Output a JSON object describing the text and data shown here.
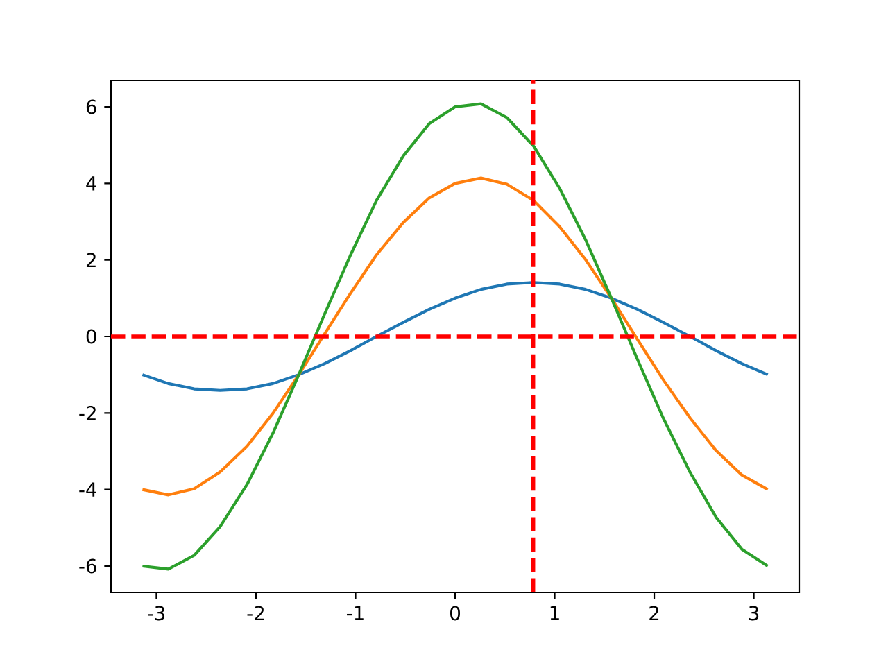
{
  "chart_data": {
    "type": "line",
    "x": [
      -3.14,
      -2.88,
      -2.62,
      -2.36,
      -2.09,
      -1.83,
      -1.57,
      -1.31,
      -1.05,
      -0.79,
      -0.52,
      -0.26,
      0,
      0.26,
      0.52,
      0.79,
      1.05,
      1.31,
      1.57,
      1.83,
      2.09,
      2.36,
      2.62,
      2.88,
      3.14
    ],
    "series": [
      {
        "color": "#1f77b4",
        "values": [
          -1,
          -1.23,
          -1.37,
          -1.41,
          -1.37,
          -1.23,
          -1,
          -0.71,
          -0.37,
          0,
          0.37,
          0.71,
          1,
          1.23,
          1.37,
          1.41,
          1.37,
          1.23,
          1,
          0.71,
          0.37,
          0,
          -0.37,
          -0.71,
          -1
        ]
      },
      {
        "color": "#ff7f0e",
        "values": [
          -4,
          -4.14,
          -3.98,
          -3.54,
          -2.87,
          -2.01,
          -1,
          0.07,
          1.13,
          2.13,
          2.98,
          3.62,
          4,
          4.14,
          3.98,
          3.55,
          2.87,
          2.01,
          1,
          -0.07,
          -1.13,
          -2.13,
          -2.98,
          -3.62,
          -4
        ]
      },
      {
        "color": "#2ca02c",
        "values": [
          -6,
          -6.08,
          -5.72,
          -4.97,
          -3.87,
          -2.53,
          -1,
          0.59,
          2.13,
          3.55,
          4.72,
          5.56,
          6,
          6.08,
          5.72,
          4.97,
          3.87,
          2.53,
          1,
          -0.59,
          -2.13,
          -3.55,
          -4.72,
          -5.56,
          -6
        ]
      }
    ],
    "xlim": [
      -3.456,
      3.456
    ],
    "ylim": [
      -6.69,
      6.69
    ],
    "xticks": [
      -3,
      -2,
      -1,
      0,
      1,
      2,
      3
    ],
    "yticks": [
      -6,
      -4,
      -2,
      0,
      2,
      4,
      6
    ],
    "ref_lines": [
      {
        "axis": "y",
        "value": 0,
        "color": "#ff0000",
        "line_style": "dashed"
      },
      {
        "axis": "x",
        "value": 0.785,
        "color": "#ff0000",
        "line_style": "dashed"
      }
    ]
  }
}
